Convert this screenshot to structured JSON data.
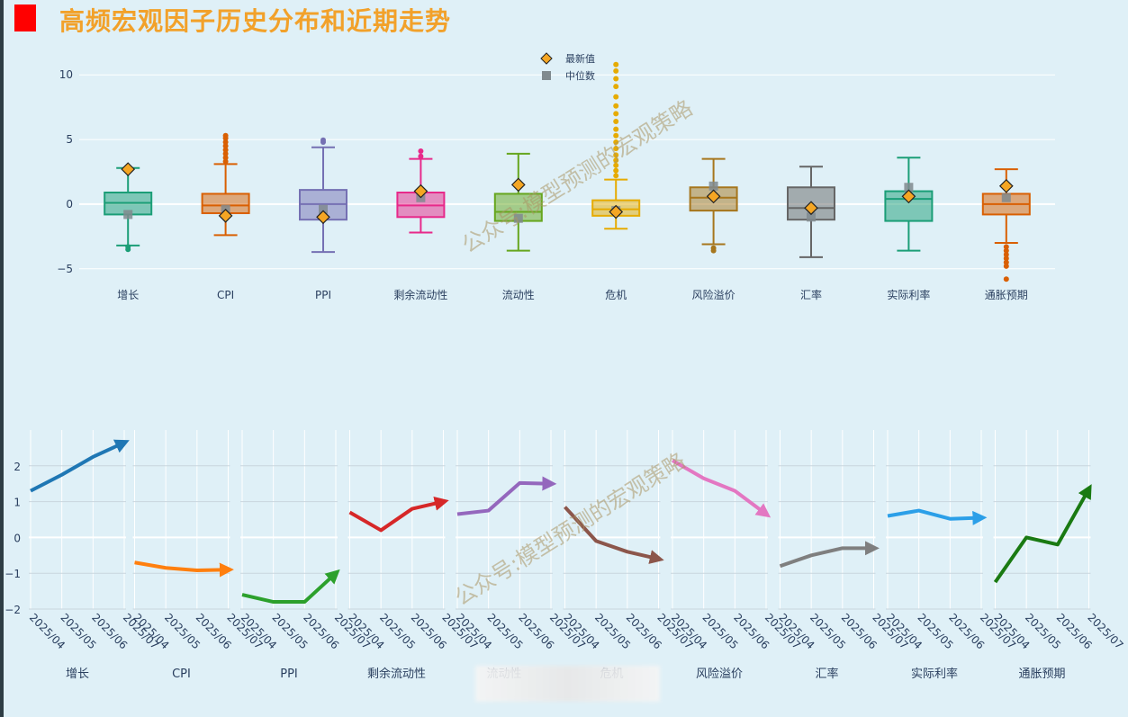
{
  "page_title": "高频宏观因子历史分布和近期走势",
  "watermark": "公众号:模型预测的宏观策略",
  "colors": {
    "accent": "#ff0000",
    "title": "#f2a12a",
    "background": "#dff0f7"
  },
  "chart_data": [
    {
      "type": "box",
      "title": "",
      "ylim": [
        -6.2,
        11.2
      ],
      "yticks": [
        -5,
        0,
        5,
        10
      ],
      "ytick_labels": [
        "−5",
        "0",
        "5",
        "10"
      ],
      "legend": {
        "position": "top-center",
        "items": [
          {
            "label": "最新值",
            "marker": "diamond",
            "color": "#f5a623"
          },
          {
            "label": "中位数",
            "marker": "square",
            "color": "#808a8e"
          }
        ]
      },
      "categories": [
        "增长",
        "CPI",
        "PPI",
        "剩余流动性",
        "流动性",
        "危机",
        "风险溢价",
        "汇率",
        "实际利率",
        "通胀预期"
      ],
      "boxes": [
        {
          "name": "增长",
          "color": "#1b9e77",
          "q1": -0.8,
          "median": 0.1,
          "q3": 0.9,
          "lower": -3.2,
          "upper": 2.8,
          "outliers": [
            -3.3,
            -3.5
          ],
          "latest": 2.7,
          "median_marker": -0.8
        },
        {
          "name": "CPI",
          "color": "#d95f02",
          "q1": -0.7,
          "median": -0.1,
          "q3": 0.8,
          "lower": -2.4,
          "upper": 3.1,
          "outliers": [
            3.3,
            3.6,
            3.9,
            4.2,
            4.5,
            4.8,
            5.1,
            5.3
          ],
          "latest": -0.9,
          "median_marker": -0.4
        },
        {
          "name": "PPI",
          "color": "#7570b3",
          "q1": -1.2,
          "median": 0.0,
          "q3": 1.1,
          "lower": -3.7,
          "upper": 4.4,
          "outliers": [
            4.8,
            4.95
          ],
          "latest": -1.0,
          "median_marker": -0.4
        },
        {
          "name": "剩余流动性",
          "color": "#e7298a",
          "q1": -1.0,
          "median": -0.1,
          "q3": 0.9,
          "lower": -2.2,
          "upper": 3.5,
          "outliers": [
            3.7,
            4.1
          ],
          "latest": 1.0,
          "median_marker": 0.5
        },
        {
          "name": "流动性",
          "color": "#66a61e",
          "q1": -1.3,
          "median": -0.6,
          "q3": 0.8,
          "lower": -3.6,
          "upper": 3.9,
          "outliers": [],
          "latest": 1.5,
          "median_marker": -1.1
        },
        {
          "name": "危机",
          "color": "#e6ab02",
          "q1": -0.9,
          "median": -0.4,
          "q3": 0.3,
          "lower": -1.9,
          "upper": 1.9,
          "outliers": [
            2.2,
            2.6,
            3.0,
            3.4,
            3.8,
            4.3,
            4.8,
            5.3,
            5.8,
            6.4,
            7.0,
            7.6,
            8.3,
            9.1,
            9.7,
            10.3,
            10.8
          ],
          "latest": -0.6,
          "median_marker": -0.5
        },
        {
          "name": "风险溢价",
          "color": "#a6761d",
          "q1": -0.5,
          "median": 0.5,
          "q3": 1.3,
          "lower": -3.1,
          "upper": 3.5,
          "outliers": [
            -3.4,
            -3.6
          ],
          "latest": 0.6,
          "median_marker": 1.4
        },
        {
          "name": "汇率",
          "color": "#666666",
          "q1": -1.2,
          "median": -0.3,
          "q3": 1.3,
          "lower": -4.1,
          "upper": 2.9,
          "outliers": [],
          "latest": -0.3,
          "median_marker": -1.0
        },
        {
          "name": "实际利率",
          "color": "#1b9e77",
          "q1": -1.3,
          "median": 0.4,
          "q3": 1.0,
          "lower": -3.6,
          "upper": 3.6,
          "outliers": [],
          "latest": 0.6,
          "median_marker": 1.3
        },
        {
          "name": "通胀预期",
          "color": "#d95f02",
          "q1": -0.8,
          "median": 0.0,
          "q3": 0.8,
          "lower": -3.0,
          "upper": 2.7,
          "outliers": [
            -3.3,
            -3.6,
            -3.9,
            -4.2,
            -4.5,
            -4.8,
            -5.8
          ],
          "latest": 1.4,
          "median_marker": 0.5
        }
      ]
    },
    {
      "type": "line",
      "title": "",
      "ylim": [
        -2,
        3
      ],
      "yticks": [
        -2,
        -1,
        0,
        1,
        2
      ],
      "ytick_labels": [
        "−2",
        "−1",
        "0",
        "1",
        "2"
      ],
      "x": [
        "2025/04",
        "2025/05",
        "2025/06",
        "2025/07"
      ],
      "series": [
        {
          "name": "增长",
          "color": "#1f77b4",
          "values": [
            1.3,
            1.75,
            2.25,
            2.65
          ]
        },
        {
          "name": "CPI",
          "color": "#ff7f0e",
          "values": [
            -0.7,
            -0.85,
            -0.92,
            -0.9
          ]
        },
        {
          "name": "PPI",
          "color": "#2ca02c",
          "values": [
            -1.6,
            -1.8,
            -1.8,
            -1.0
          ]
        },
        {
          "name": "剩余流动性",
          "color": "#d62728",
          "values": [
            0.7,
            0.2,
            0.8,
            1.0
          ]
        },
        {
          "name": "流动性",
          "color": "#9467bd",
          "values": [
            0.65,
            0.75,
            1.52,
            1.5
          ]
        },
        {
          "name": "危机",
          "color": "#8c564b",
          "values": [
            0.85,
            -0.1,
            -0.4,
            -0.6
          ]
        },
        {
          "name": "风险溢价",
          "color": "#e377c2",
          "values": [
            2.15,
            1.65,
            1.3,
            0.65
          ]
        },
        {
          "name": "汇率",
          "color": "#7f7f7f",
          "values": [
            -0.8,
            -0.5,
            -0.3,
            -0.3
          ]
        },
        {
          "name": "实际利率",
          "color": "#2b9fe8",
          "values": [
            0.6,
            0.75,
            0.52,
            0.55
          ]
        },
        {
          "name": "通胀预期",
          "color": "#1a7a12",
          "values": [
            -1.25,
            0.0,
            -0.2,
            1.35
          ]
        }
      ]
    }
  ]
}
